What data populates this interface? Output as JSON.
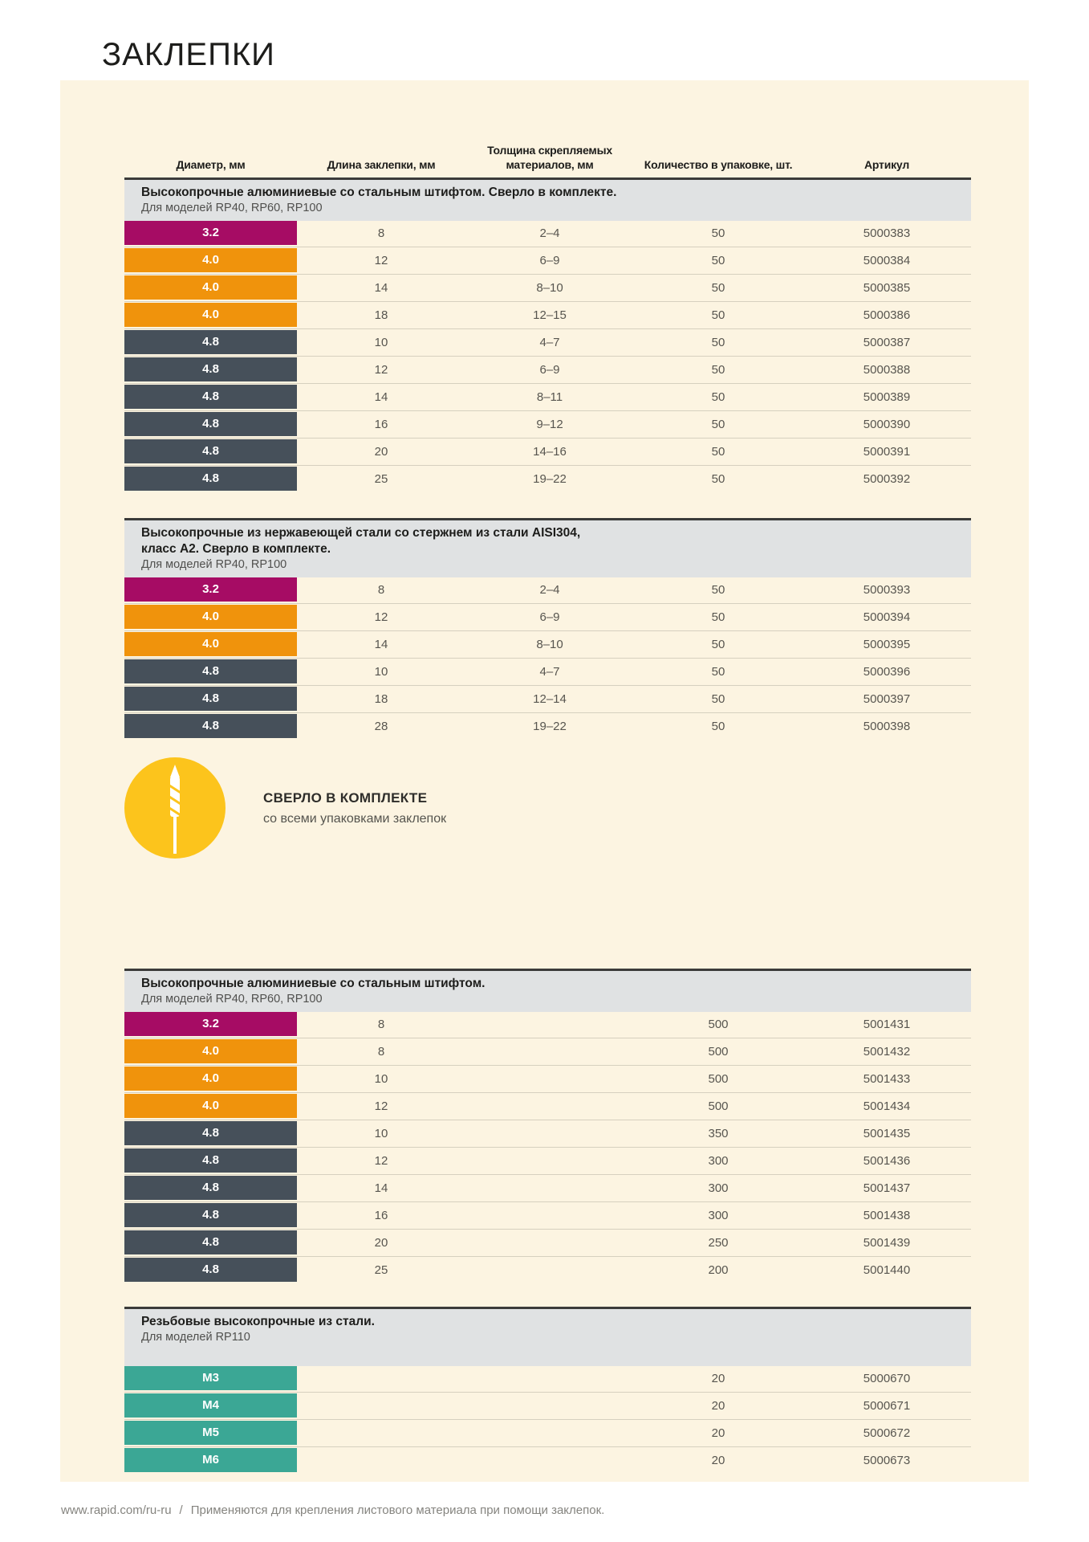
{
  "page": {
    "title": "ЗАКЛЕПКИ",
    "footer": {
      "url": "www.rapid.com/ru-ru",
      "separator": "/",
      "note": "Применяются для крепления листового материала при помощи заклепок."
    }
  },
  "colors": {
    "magenta": "#a60c64",
    "orange": "#f0930c",
    "slate": "#46505a",
    "teal": "#3ba795",
    "yellow": "#fcc41c",
    "panel_bg": "#fcf4e1",
    "section_header_bg": "#e0e2e3"
  },
  "table": {
    "columns": [
      "Диаметр, мм",
      "Длина заклепки, мм",
      "Толщина скрепляемых материалов, мм",
      "Количество в упаковке, шт.",
      "Артикул"
    ]
  },
  "badge": {
    "icon": "drill-bit-icon",
    "title": "СВЕРЛО В КОМПЛЕКТЕ",
    "subtitle": "со всеми упаковками заклепок"
  },
  "sections": [
    {
      "title_lines": [
        "Высокопрочные алюминиевые со стальным штифтом. Сверло в комплекте."
      ],
      "subtitle": "Для моделей RP40, RP60, RP100",
      "rows": [
        {
          "diameter": "3.2",
          "color": "magenta",
          "length": "8",
          "thickness": "2–4",
          "qty": "50",
          "sku": "5000383"
        },
        {
          "diameter": "4.0",
          "color": "orange",
          "length": "12",
          "thickness": "6–9",
          "qty": "50",
          "sku": "5000384"
        },
        {
          "diameter": "4.0",
          "color": "orange",
          "length": "14",
          "thickness": "8–10",
          "qty": "50",
          "sku": "5000385"
        },
        {
          "diameter": "4.0",
          "color": "orange",
          "length": "18",
          "thickness": "12–15",
          "qty": "50",
          "sku": "5000386"
        },
        {
          "diameter": "4.8",
          "color": "slate",
          "length": "10",
          "thickness": "4–7",
          "qty": "50",
          "sku": "5000387"
        },
        {
          "diameter": "4.8",
          "color": "slate",
          "length": "12",
          "thickness": "6–9",
          "qty": "50",
          "sku": "5000388"
        },
        {
          "diameter": "4.8",
          "color": "slate",
          "length": "14",
          "thickness": "8–11",
          "qty": "50",
          "sku": "5000389"
        },
        {
          "diameter": "4.8",
          "color": "slate",
          "length": "16",
          "thickness": "9–12",
          "qty": "50",
          "sku": "5000390"
        },
        {
          "diameter": "4.8",
          "color": "slate",
          "length": "20",
          "thickness": "14–16",
          "qty": "50",
          "sku": "5000391"
        },
        {
          "diameter": "4.8",
          "color": "slate",
          "length": "25",
          "thickness": "19–22",
          "qty": "50",
          "sku": "5000392"
        }
      ]
    },
    {
      "title_lines": [
        "Высокопрочные из нержавеющей стали со стержнем из стали AISI304,",
        "класс А2. Сверло в комплекте."
      ],
      "subtitle": "Для моделей RP40, RP100",
      "rows": [
        {
          "diameter": "3.2",
          "color": "magenta",
          "length": "8",
          "thickness": "2–4",
          "qty": "50",
          "sku": "5000393"
        },
        {
          "diameter": "4.0",
          "color": "orange",
          "length": "12",
          "thickness": "6–9",
          "qty": "50",
          "sku": "5000394"
        },
        {
          "diameter": "4.0",
          "color": "orange",
          "length": "14",
          "thickness": "8–10",
          "qty": "50",
          "sku": "5000395"
        },
        {
          "diameter": "4.8",
          "color": "slate",
          "length": "10",
          "thickness": "4–7",
          "qty": "50",
          "sku": "5000396"
        },
        {
          "diameter": "4.8",
          "color": "slate",
          "length": "18",
          "thickness": "12–14",
          "qty": "50",
          "sku": "5000397"
        },
        {
          "diameter": "4.8",
          "color": "slate",
          "length": "28",
          "thickness": "19–22",
          "qty": "50",
          "sku": "5000398"
        }
      ]
    },
    {
      "title_lines": [
        "Высокопрочные алюминиевые со стальным штифтом."
      ],
      "subtitle": "Для моделей RP40, RP60, RP100",
      "rows": [
        {
          "diameter": "3.2",
          "color": "magenta",
          "length": "8",
          "thickness": "",
          "qty": "500",
          "sku": "5001431"
        },
        {
          "diameter": "4.0",
          "color": "orange",
          "length": "8",
          "thickness": "",
          "qty": "500",
          "sku": "5001432"
        },
        {
          "diameter": "4.0",
          "color": "orange",
          "length": "10",
          "thickness": "",
          "qty": "500",
          "sku": "5001433"
        },
        {
          "diameter": "4.0",
          "color": "orange",
          "length": "12",
          "thickness": "",
          "qty": "500",
          "sku": "5001434"
        },
        {
          "diameter": "4.8",
          "color": "slate",
          "length": "10",
          "thickness": "",
          "qty": "350",
          "sku": "5001435"
        },
        {
          "diameter": "4.8",
          "color": "slate",
          "length": "12",
          "thickness": "",
          "qty": "300",
          "sku": "5001436"
        },
        {
          "diameter": "4.8",
          "color": "slate",
          "length": "14",
          "thickness": "",
          "qty": "300",
          "sku": "5001437"
        },
        {
          "diameter": "4.8",
          "color": "slate",
          "length": "16",
          "thickness": "",
          "qty": "300",
          "sku": "5001438"
        },
        {
          "diameter": "4.8",
          "color": "slate",
          "length": "20",
          "thickness": "",
          "qty": "250",
          "sku": "5001439"
        },
        {
          "diameter": "4.8",
          "color": "slate",
          "length": "25",
          "thickness": "",
          "qty": "200",
          "sku": "5001440"
        }
      ]
    },
    {
      "title_lines": [
        "Резьбовые высокопрочные из стали."
      ],
      "subtitle": "Для моделей RP110",
      "rows": [
        {
          "diameter": "M3",
          "color": "teal",
          "length": "",
          "thickness": "",
          "qty": "20",
          "sku": "5000670"
        },
        {
          "diameter": "M4",
          "color": "teal",
          "length": "",
          "thickness": "",
          "qty": "20",
          "sku": "5000671"
        },
        {
          "diameter": "M5",
          "color": "teal",
          "length": "",
          "thickness": "",
          "qty": "20",
          "sku": "5000672"
        },
        {
          "diameter": "M6",
          "color": "teal",
          "length": "",
          "thickness": "",
          "qty": "20",
          "sku": "5000673"
        }
      ]
    }
  ]
}
